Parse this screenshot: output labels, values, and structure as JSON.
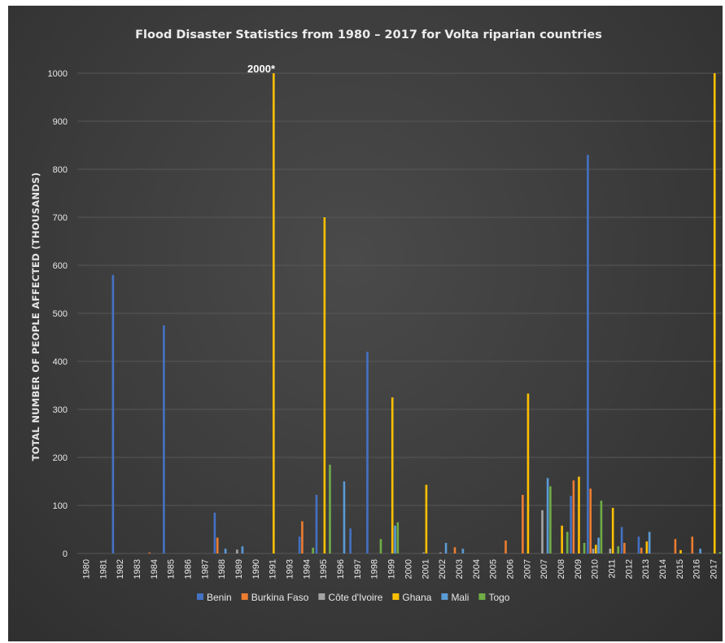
{
  "chart_data": {
    "type": "bar",
    "title": "Flood Disaster Statistics from 1980 – 2017 for Volta riparian countries",
    "ylabel": "TOTAL NUMBER OF PEOPLE AFFECTED (THOUSANDS)",
    "xlabel": "",
    "ylim": [
      0,
      1000
    ],
    "yticks": [
      0,
      100,
      200,
      300,
      400,
      500,
      600,
      700,
      800,
      900,
      1000
    ],
    "grid": true,
    "legend_position": "bottom",
    "annotation": {
      "text": "2000*",
      "category": "1991",
      "series": "Ghana"
    },
    "categories": [
      "1980",
      "1981",
      "1982",
      "1983",
      "1984",
      "1985",
      "1986",
      "1987",
      "1988",
      "1989",
      "1990",
      "1991",
      "1993",
      "1994",
      "1995",
      "1996",
      "1997",
      "1998",
      "1999",
      "2000",
      "2001",
      "2002",
      "2003",
      "2004",
      "2005",
      "2006",
      "2007",
      "2007",
      "2008",
      "2009",
      "2010",
      "2011",
      "2012",
      "2013",
      "2014",
      "2015",
      "2016",
      "2017"
    ],
    "series": [
      {
        "name": "Benin",
        "color": "#4472c4",
        "values": [
          0,
          0,
          580,
          0,
          0,
          475,
          0,
          0,
          85,
          0,
          0,
          0,
          0,
          35,
          122,
          0,
          52,
          420,
          0,
          0,
          0,
          0,
          0,
          0,
          0,
          0,
          0,
          0,
          0,
          120,
          830,
          0,
          55,
          35,
          0,
          0,
          0,
          0
        ]
      },
      {
        "name": "Burkina Faso",
        "color": "#ed7d31",
        "values": [
          0,
          0,
          0,
          0,
          2,
          0,
          0,
          0,
          33,
          0,
          0,
          0,
          0,
          67,
          0,
          0,
          0,
          0,
          0,
          0,
          0,
          0,
          13,
          0,
          0,
          27,
          122,
          0,
          0,
          152,
          135,
          0,
          22,
          12,
          0,
          30,
          35,
          0
        ]
      },
      {
        "name": "Côte d'Ivoire",
        "color": "#a5a5a5",
        "values": [
          0,
          0,
          0,
          0,
          0,
          0,
          0,
          0,
          0,
          8,
          0,
          0,
          0,
          0,
          0,
          0,
          0,
          0,
          0,
          0,
          2,
          2,
          0,
          0,
          0,
          0,
          0,
          90,
          0,
          0,
          10,
          10,
          0,
          0,
          0,
          0,
          0,
          0
        ]
      },
      {
        "name": "Ghana",
        "color": "#ffc000",
        "values": [
          0,
          0,
          0,
          0,
          0,
          0,
          0,
          0,
          0,
          0,
          0,
          1000,
          0,
          0,
          700,
          0,
          0,
          0,
          325,
          0,
          143,
          0,
          0,
          0,
          0,
          0,
          333,
          0,
          58,
          160,
          18,
          95,
          0,
          25,
          0,
          7,
          0,
          1000
        ]
      },
      {
        "name": "Mali",
        "color": "#5b9bd5",
        "values": [
          0,
          0,
          0,
          0,
          0,
          0,
          0,
          0,
          10,
          15,
          0,
          0,
          0,
          0,
          0,
          150,
          0,
          0,
          58,
          0,
          0,
          22,
          10,
          0,
          0,
          0,
          0,
          157,
          0,
          0,
          33,
          0,
          0,
          45,
          0,
          0,
          10,
          0
        ]
      },
      {
        "name": "Togo",
        "color": "#70ad47",
        "values": [
          0,
          0,
          0,
          0,
          0,
          0,
          0,
          0,
          0,
          0,
          0,
          0,
          0,
          12,
          185,
          0,
          0,
          30,
          65,
          0,
          0,
          0,
          0,
          0,
          0,
          0,
          0,
          140,
          45,
          22,
          110,
          15,
          0,
          0,
          0,
          0,
          0,
          3
        ]
      }
    ]
  }
}
